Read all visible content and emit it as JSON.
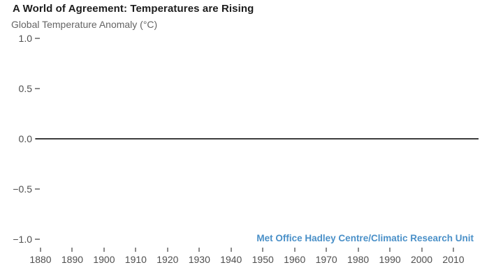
{
  "header": {
    "title": "A World of Agreement: Temperatures are Rising",
    "subtitle": "Global Temperature Anomaly (°C)"
  },
  "source_credit": "Met Office Hadley Centre/Climatic Research Unit",
  "colors": {
    "title_text": "#1c1c1c",
    "subtitle_text": "#646464",
    "axis_label_text": "#4f4f4f",
    "tick_mark": "#8c8c8c",
    "zero_line": "#3d3d3d",
    "credit_blue": "#4a90c8",
    "background": "#ffffff"
  },
  "chart_data": {
    "type": "line",
    "title": "A World of Agreement: Temperatures are Rising",
    "ylabel": "Global Temperature Anomaly (°C)",
    "xlabel": "",
    "x_tick_values": [
      1880,
      1890,
      1900,
      1910,
      1920,
      1930,
      1940,
      1950,
      1960,
      1970,
      1980,
      1990,
      2000,
      2010
    ],
    "x_tick_labels": [
      "1880",
      "1890",
      "1900",
      "1910",
      "1920",
      "1930",
      "1940",
      "1950",
      "1960",
      "1970",
      "1980",
      "1990",
      "2000",
      "2010"
    ],
    "y_tick_values": [
      1.0,
      0.5,
      0.0,
      -0.5,
      -1.0
    ],
    "y_tick_labels": [
      "1.0",
      "0.5",
      "0.0",
      "−0.5",
      "−1.0"
    ],
    "xlim": [
      1878,
      2018
    ],
    "ylim": [
      -1.15,
      1.0
    ],
    "grid": false,
    "zero_baseline_drawn": true,
    "series": [],
    "legend": null,
    "annotations": [
      "Met Office Hadley Centre/Climatic Research Unit"
    ]
  }
}
